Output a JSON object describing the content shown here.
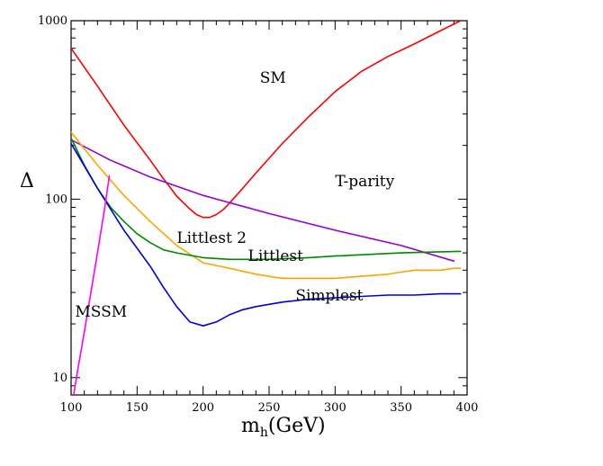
{
  "chart_data": {
    "type": "line",
    "title": "",
    "xlabel": "m",
    "xlabel_sub": "h",
    "xlabel_unit": "(GeV)",
    "ylabel": "Δ",
    "xlim": [
      100,
      400
    ],
    "ylim": [
      8,
      1000
    ],
    "yscale": "log",
    "x_ticks": [
      100,
      150,
      200,
      250,
      300,
      350,
      400
    ],
    "x_tick_labels": [
      "100",
      "150",
      "200",
      "250",
      "300",
      "350",
      "400"
    ],
    "y_ticks": [
      10,
      100,
      1000
    ],
    "y_tick_labels": [
      "10",
      "100",
      "1000"
    ],
    "grid": false,
    "series": [
      {
        "name": "SM",
        "color": "#ff0000",
        "x": [
          100,
          120,
          140,
          160,
          170,
          180,
          190,
          195,
          200,
          205,
          210,
          215,
          220,
          230,
          240,
          260,
          280,
          300,
          320,
          340,
          360,
          380,
          395
        ],
        "y": [
          700,
          430,
          260,
          165,
          130,
          104,
          88,
          82,
          79,
          79,
          82,
          87,
          95,
          115,
          140,
          205,
          290,
          400,
          520,
          630,
          740,
          880,
          1000
        ]
      },
      {
        "name": "T-parity",
        "color": "#9900cc",
        "x": [
          100,
          130,
          160,
          200,
          250,
          300,
          350,
          390
        ],
        "y": [
          215,
          165,
          133,
          105,
          83,
          67,
          55,
          45
        ]
      },
      {
        "name": "Littlest",
        "color": "#ffa500",
        "x": [
          100,
          120,
          140,
          160,
          180,
          200,
          220,
          240,
          260,
          280,
          300,
          320,
          340,
          350,
          360,
          380,
          390,
          395
        ],
        "y": [
          237,
          155,
          105,
          75,
          55,
          44,
          41,
          38,
          36,
          36,
          36,
          37,
          38,
          39,
          40,
          40,
          41,
          41
        ]
      },
      {
        "name": "Littlest 2",
        "color": "#008800",
        "x": [
          100,
          110,
          120,
          130,
          140,
          150,
          160,
          170,
          180,
          200,
          220,
          250,
          280,
          300,
          350,
          395
        ],
        "y": [
          220,
          155,
          115,
          90,
          75,
          64,
          57,
          52,
          50,
          47,
          46,
          46,
          47,
          48,
          50,
          51
        ]
      },
      {
        "name": "Simplest",
        "color": "#0000dd",
        "x": [
          100,
          120,
          140,
          160,
          170,
          180,
          190,
          200,
          210,
          220,
          230,
          240,
          260,
          280,
          300,
          320,
          340,
          350,
          360,
          380,
          395
        ],
        "y": [
          205,
          115,
          67,
          42,
          32,
          25,
          20.5,
          19.5,
          20.5,
          22.5,
          24,
          25,
          26.5,
          27.5,
          28,
          28.5,
          29,
          29,
          29,
          29.5,
          29.5
        ]
      },
      {
        "name": "MSSM",
        "color": "#ff00ff",
        "x": [
          102,
          105,
          110,
          115,
          120,
          125,
          129
        ],
        "y": [
          8,
          11,
          18,
          30,
          50,
          85,
          135
        ]
      }
    ],
    "annotations": [
      {
        "text": "SM",
        "x": 243,
        "y": 450
      },
      {
        "text": "T-parity",
        "x": 300,
        "y": 118
      },
      {
        "text": "Littlest 2",
        "x": 180,
        "y": 57
      },
      {
        "text": "Littlest",
        "x": 234,
        "y": 45
      },
      {
        "text": "Simplest",
        "x": 270,
        "y": 27
      },
      {
        "text": "MSSM",
        "x": 103,
        "y": 22
      }
    ]
  }
}
